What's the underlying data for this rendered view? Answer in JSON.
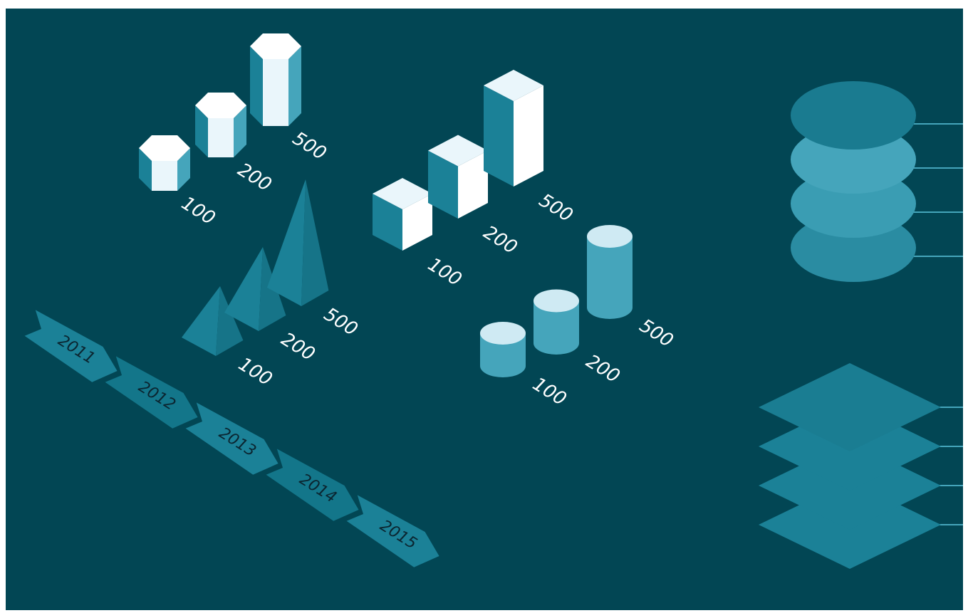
{
  "chart_data": [
    {
      "type": "bar",
      "shape": "hexagonal-prism",
      "labels": [
        "100",
        "200",
        "500"
      ],
      "values": [
        100,
        200,
        500
      ]
    },
    {
      "type": "bar",
      "shape": "pyramid",
      "labels": [
        "100",
        "200",
        "500"
      ],
      "values": [
        100,
        200,
        500
      ]
    },
    {
      "type": "bar",
      "shape": "cube",
      "labels": [
        "100",
        "200",
        "500"
      ],
      "values": [
        100,
        200,
        500
      ]
    },
    {
      "type": "bar",
      "shape": "cylinder",
      "labels": [
        "100",
        "200",
        "500"
      ],
      "values": [
        100,
        200,
        500
      ]
    },
    {
      "type": "timeline",
      "shape": "arrow-ribbon",
      "labels": [
        "2011",
        "2012",
        "2013",
        "2014",
        "2015"
      ]
    },
    {
      "type": "stack",
      "shape": "ellipse-layers",
      "layers": 4
    },
    {
      "type": "stack",
      "shape": "diamond-layers",
      "layers": 4
    }
  ],
  "colors": {
    "background": "#024654",
    "teal_dark": "#1b8197",
    "teal_mid": "#2e93a9",
    "teal_light": "#45a5bb",
    "face_white": "#ffffff",
    "face_pale": "#eaf6fb",
    "cyl_top": "#cfeaf3"
  }
}
